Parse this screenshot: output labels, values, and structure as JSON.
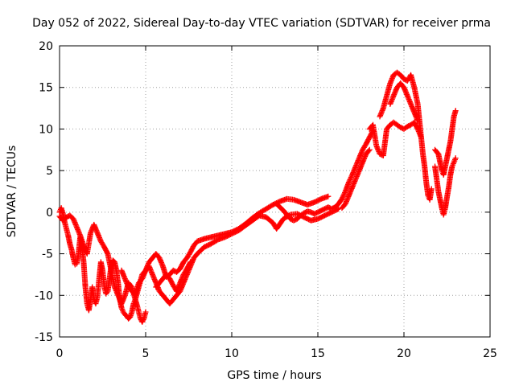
{
  "chart_data": {
    "type": "scatter",
    "title": "Day 052 of 2022, Sidereal Day-to-day VTEC variation (SDTVAR) for receiver prma",
    "xlabel": "GPS time / hours",
    "ylabel": "SDTVAR / TECUs",
    "xlim": [
      0,
      25
    ],
    "ylim": [
      -15,
      20
    ],
    "xticks": [
      "0",
      "5",
      "10",
      "15",
      "20",
      "25"
    ],
    "yticks": [
      "-15",
      "-10",
      "-5",
      "0",
      "5",
      "10",
      "15",
      "20"
    ],
    "grid": true,
    "marker": "+",
    "color": "#ff0000",
    "series": [
      {
        "points": [
          [
            0.0,
            0.0
          ],
          [
            0.1,
            0.5
          ],
          [
            0.2,
            -0.2
          ],
          [
            0.3,
            -1.2
          ],
          [
            0.4,
            -2.0
          ],
          [
            0.5,
            -2.8
          ],
          [
            0.6,
            -3.8
          ],
          [
            0.7,
            -4.5
          ],
          [
            0.8,
            -5.5
          ],
          [
            0.9,
            -6.3
          ],
          [
            1.0,
            -6.2
          ],
          [
            1.1,
            -5.0
          ],
          [
            1.2,
            -3.0
          ],
          [
            1.3,
            -4.0
          ],
          [
            1.4,
            -6.0
          ],
          [
            1.5,
            -9.0
          ],
          [
            1.6,
            -11.0
          ],
          [
            1.7,
            -11.8
          ],
          [
            1.8,
            -10.5
          ],
          [
            1.9,
            -9.0
          ],
          [
            2.0,
            -10.5
          ],
          [
            2.1,
            -11.0
          ],
          [
            2.2,
            -10.2
          ],
          [
            2.3,
            -8.0
          ],
          [
            2.4,
            -6.0
          ],
          [
            2.5,
            -7.0
          ],
          [
            2.6,
            -9.0
          ],
          [
            2.7,
            -9.8
          ],
          [
            2.8,
            -9.5
          ],
          [
            2.9,
            -8.0
          ],
          [
            3.0,
            -6.5
          ],
          [
            3.1,
            -5.8
          ],
          [
            3.2,
            -6.0
          ],
          [
            3.3,
            -7.0
          ],
          [
            3.4,
            -8.5
          ],
          [
            3.5,
            -10.5
          ],
          [
            3.6,
            -11.5
          ],
          [
            3.7,
            -12.0
          ],
          [
            3.8,
            -12.3
          ],
          [
            3.9,
            -12.5
          ],
          [
            4.0,
            -12.8
          ],
          [
            4.1,
            -12.6
          ],
          [
            4.2,
            -12.0
          ],
          [
            4.3,
            -11.0
          ],
          [
            4.4,
            -10.5
          ],
          [
            4.5,
            -11.2
          ],
          [
            4.6,
            -12.0
          ],
          [
            4.7,
            -12.8
          ],
          [
            4.8,
            -13.2
          ],
          [
            4.9,
            -12.8
          ],
          [
            5.0,
            -12.0
          ]
        ]
      },
      {
        "points": [
          [
            0.0,
            -0.5
          ],
          [
            0.2,
            -1.0
          ],
          [
            0.4,
            -0.6
          ],
          [
            0.6,
            -0.4
          ],
          [
            0.8,
            -0.8
          ],
          [
            1.0,
            -1.8
          ],
          [
            1.2,
            -2.8
          ],
          [
            1.4,
            -4.0
          ],
          [
            1.6,
            -5.0
          ],
          [
            1.8,
            -2.5
          ],
          [
            2.0,
            -1.5
          ],
          [
            2.2,
            -2.5
          ],
          [
            2.4,
            -3.5
          ],
          [
            2.6,
            -4.2
          ],
          [
            2.8,
            -5.0
          ],
          [
            3.0,
            -7.0
          ],
          [
            3.2,
            -9.0
          ],
          [
            3.4,
            -10.0
          ],
          [
            3.6,
            -11.0
          ],
          [
            3.8,
            -10.0
          ],
          [
            4.0,
            -8.5
          ],
          [
            4.2,
            -9.0
          ],
          [
            4.4,
            -10.5
          ],
          [
            4.6,
            -9.0
          ],
          [
            4.8,
            -7.5
          ],
          [
            5.0,
            -7.0
          ],
          [
            5.2,
            -6.0
          ],
          [
            5.4,
            -5.5
          ],
          [
            5.6,
            -5.0
          ],
          [
            5.8,
            -5.5
          ],
          [
            6.0,
            -6.5
          ],
          [
            6.2,
            -7.8
          ],
          [
            6.4,
            -7.5
          ],
          [
            6.6,
            -7.0
          ],
          [
            6.8,
            -7.2
          ],
          [
            7.0,
            -6.8
          ],
          [
            7.2,
            -6.0
          ],
          [
            7.4,
            -5.5
          ],
          [
            7.6,
            -4.8
          ],
          [
            7.8,
            -4.0
          ],
          [
            8.0,
            -3.5
          ],
          [
            8.4,
            -3.2
          ],
          [
            8.8,
            -3.0
          ],
          [
            9.2,
            -2.8
          ],
          [
            9.6,
            -2.6
          ],
          [
            10.0,
            -2.4
          ],
          [
            10.4,
            -2.0
          ],
          [
            10.8,
            -1.4
          ],
          [
            11.2,
            -0.7
          ],
          [
            11.6,
            -0.1
          ],
          [
            12.0,
            0.4
          ],
          [
            12.4,
            0.9
          ],
          [
            12.8,
            1.3
          ],
          [
            13.2,
            1.6
          ],
          [
            13.6,
            1.5
          ],
          [
            14.0,
            1.2
          ],
          [
            14.4,
            0.9
          ],
          [
            14.8,
            1.2
          ],
          [
            15.2,
            1.6
          ],
          [
            15.6,
            1.9
          ]
        ]
      },
      {
        "points": [
          [
            3.6,
            -7.0
          ],
          [
            3.8,
            -8.0
          ],
          [
            4.0,
            -9.0
          ],
          [
            4.2,
            -9.5
          ],
          [
            4.4,
            -10.0
          ],
          [
            4.6,
            -8.5
          ],
          [
            4.8,
            -8.0
          ],
          [
            5.0,
            -7.0
          ],
          [
            5.2,
            -6.5
          ],
          [
            5.4,
            -7.5
          ],
          [
            5.6,
            -8.5
          ],
          [
            5.8,
            -9.5
          ],
          [
            6.0,
            -10.0
          ],
          [
            6.2,
            -10.5
          ],
          [
            6.4,
            -11.0
          ],
          [
            6.6,
            -10.5
          ],
          [
            6.8,
            -10.0
          ],
          [
            7.0,
            -9.5
          ],
          [
            7.2,
            -8.5
          ],
          [
            7.4,
            -7.5
          ],
          [
            7.6,
            -6.5
          ],
          [
            7.8,
            -5.5
          ],
          [
            8.0,
            -5.0
          ],
          [
            8.4,
            -4.2
          ],
          [
            8.8,
            -3.8
          ],
          [
            9.2,
            -3.3
          ],
          [
            9.6,
            -3.0
          ],
          [
            10.0,
            -2.6
          ],
          [
            10.4,
            -2.2
          ],
          [
            10.8,
            -1.6
          ],
          [
            11.2,
            -1.0
          ],
          [
            11.6,
            -0.4
          ],
          [
            12.0,
            -0.6
          ],
          [
            12.4,
            -1.3
          ],
          [
            12.6,
            -2.0
          ],
          [
            12.8,
            -1.4
          ],
          [
            13.0,
            -0.8
          ],
          [
            13.4,
            -0.3
          ],
          [
            13.8,
            -0.2
          ],
          [
            14.2,
            -0.6
          ],
          [
            14.6,
            -1.0
          ],
          [
            15.0,
            -0.8
          ],
          [
            15.4,
            -0.4
          ],
          [
            15.8,
            0.0
          ],
          [
            16.2,
            0.4
          ]
        ]
      },
      {
        "points": [
          [
            5.6,
            -9.0
          ],
          [
            5.8,
            -8.5
          ],
          [
            6.0,
            -8.0
          ],
          [
            6.2,
            -7.5
          ],
          [
            6.4,
            -8.0
          ],
          [
            6.6,
            -8.8
          ],
          [
            6.8,
            -9.5
          ],
          [
            7.0,
            -8.5
          ],
          [
            7.2,
            -7.5
          ],
          [
            7.4,
            -6.8
          ],
          [
            7.6,
            -6.0
          ]
        ]
      },
      {
        "points": [
          [
            12.6,
            1.0
          ],
          [
            12.8,
            0.6
          ],
          [
            13.0,
            0.2
          ],
          [
            13.2,
            -0.3
          ],
          [
            13.4,
            -0.8
          ],
          [
            13.6,
            -1.0
          ],
          [
            13.8,
            -0.8
          ],
          [
            14.0,
            -0.4
          ],
          [
            14.2,
            -0.1
          ],
          [
            14.4,
            0.1
          ],
          [
            14.6,
            0.0
          ],
          [
            14.8,
            -0.2
          ],
          [
            15.0,
            0.0
          ],
          [
            15.2,
            0.2
          ],
          [
            15.4,
            0.4
          ],
          [
            15.6,
            0.6
          ],
          [
            15.8,
            0.4
          ],
          [
            16.0,
            0.6
          ],
          [
            16.2,
            1.0
          ],
          [
            16.4,
            1.6
          ],
          [
            16.6,
            2.5
          ],
          [
            16.8,
            3.6
          ],
          [
            17.0,
            4.5
          ],
          [
            17.2,
            5.5
          ],
          [
            17.4,
            6.5
          ],
          [
            17.6,
            7.5
          ],
          [
            17.8,
            8.2
          ],
          [
            18.0,
            9.0
          ],
          [
            18.2,
            9.8
          ]
        ]
      },
      {
        "points": [
          [
            16.4,
            0.5
          ],
          [
            16.6,
            1.0
          ],
          [
            16.8,
            2.0
          ],
          [
            17.0,
            3.0
          ],
          [
            17.2,
            4.0
          ],
          [
            17.4,
            5.0
          ],
          [
            17.6,
            6.0
          ],
          [
            17.8,
            7.0
          ],
          [
            18.0,
            7.5
          ]
        ]
      },
      {
        "points": [
          [
            18.0,
            10.0
          ],
          [
            18.2,
            10.5
          ],
          [
            18.4,
            8.0
          ],
          [
            18.6,
            7.0
          ],
          [
            18.8,
            6.8
          ],
          [
            19.0,
            10.0
          ],
          [
            19.2,
            10.5
          ],
          [
            19.4,
            10.8
          ],
          [
            19.6,
            10.5
          ],
          [
            19.8,
            10.2
          ],
          [
            20.0,
            10.0
          ],
          [
            20.2,
            10.3
          ],
          [
            20.4,
            10.5
          ],
          [
            20.6,
            10.8
          ],
          [
            20.8,
            10.0
          ],
          [
            21.0,
            9.0
          ]
        ]
      },
      {
        "points": [
          [
            18.6,
            11.5
          ],
          [
            18.8,
            12.5
          ],
          [
            19.0,
            14.0
          ],
          [
            19.2,
            15.5
          ],
          [
            19.4,
            16.5
          ],
          [
            19.6,
            16.8
          ],
          [
            19.8,
            16.5
          ],
          [
            20.0,
            16.0
          ],
          [
            20.2,
            15.8
          ],
          [
            20.4,
            16.5
          ],
          [
            20.6,
            15.0
          ],
          [
            20.8,
            13.0
          ],
          [
            21.0,
            9.0
          ],
          [
            21.1,
            7.0
          ],
          [
            21.2,
            5.5
          ],
          [
            21.3,
            3.5
          ],
          [
            21.4,
            2.0
          ],
          [
            21.5,
            1.5
          ],
          [
            21.6,
            2.8
          ]
        ]
      },
      {
        "points": [
          [
            19.2,
            13.0
          ],
          [
            19.4,
            14.0
          ],
          [
            19.6,
            15.0
          ],
          [
            19.8,
            15.5
          ],
          [
            20.0,
            15.0
          ],
          [
            20.2,
            14.0
          ],
          [
            20.4,
            13.0
          ],
          [
            20.6,
            12.0
          ],
          [
            20.8,
            11.0
          ]
        ]
      },
      {
        "points": [
          [
            21.8,
            7.5
          ],
          [
            22.0,
            7.0
          ],
          [
            22.1,
            6.0
          ],
          [
            22.2,
            5.0
          ],
          [
            22.3,
            4.5
          ],
          [
            22.4,
            5.5
          ],
          [
            22.5,
            6.5
          ],
          [
            22.6,
            7.5
          ],
          [
            22.7,
            8.5
          ],
          [
            22.8,
            10.0
          ],
          [
            22.9,
            11.5
          ],
          [
            23.0,
            12.2
          ]
        ]
      },
      {
        "points": [
          [
            21.8,
            5.5
          ],
          [
            21.9,
            4.0
          ],
          [
            22.0,
            2.5
          ],
          [
            22.1,
            1.5
          ],
          [
            22.2,
            0.5
          ],
          [
            22.3,
            -0.3
          ],
          [
            22.4,
            0.5
          ],
          [
            22.5,
            1.8
          ],
          [
            22.6,
            3.0
          ],
          [
            22.7,
            4.5
          ],
          [
            22.8,
            5.5
          ],
          [
            22.9,
            6.0
          ],
          [
            23.0,
            6.5
          ]
        ]
      }
    ]
  }
}
